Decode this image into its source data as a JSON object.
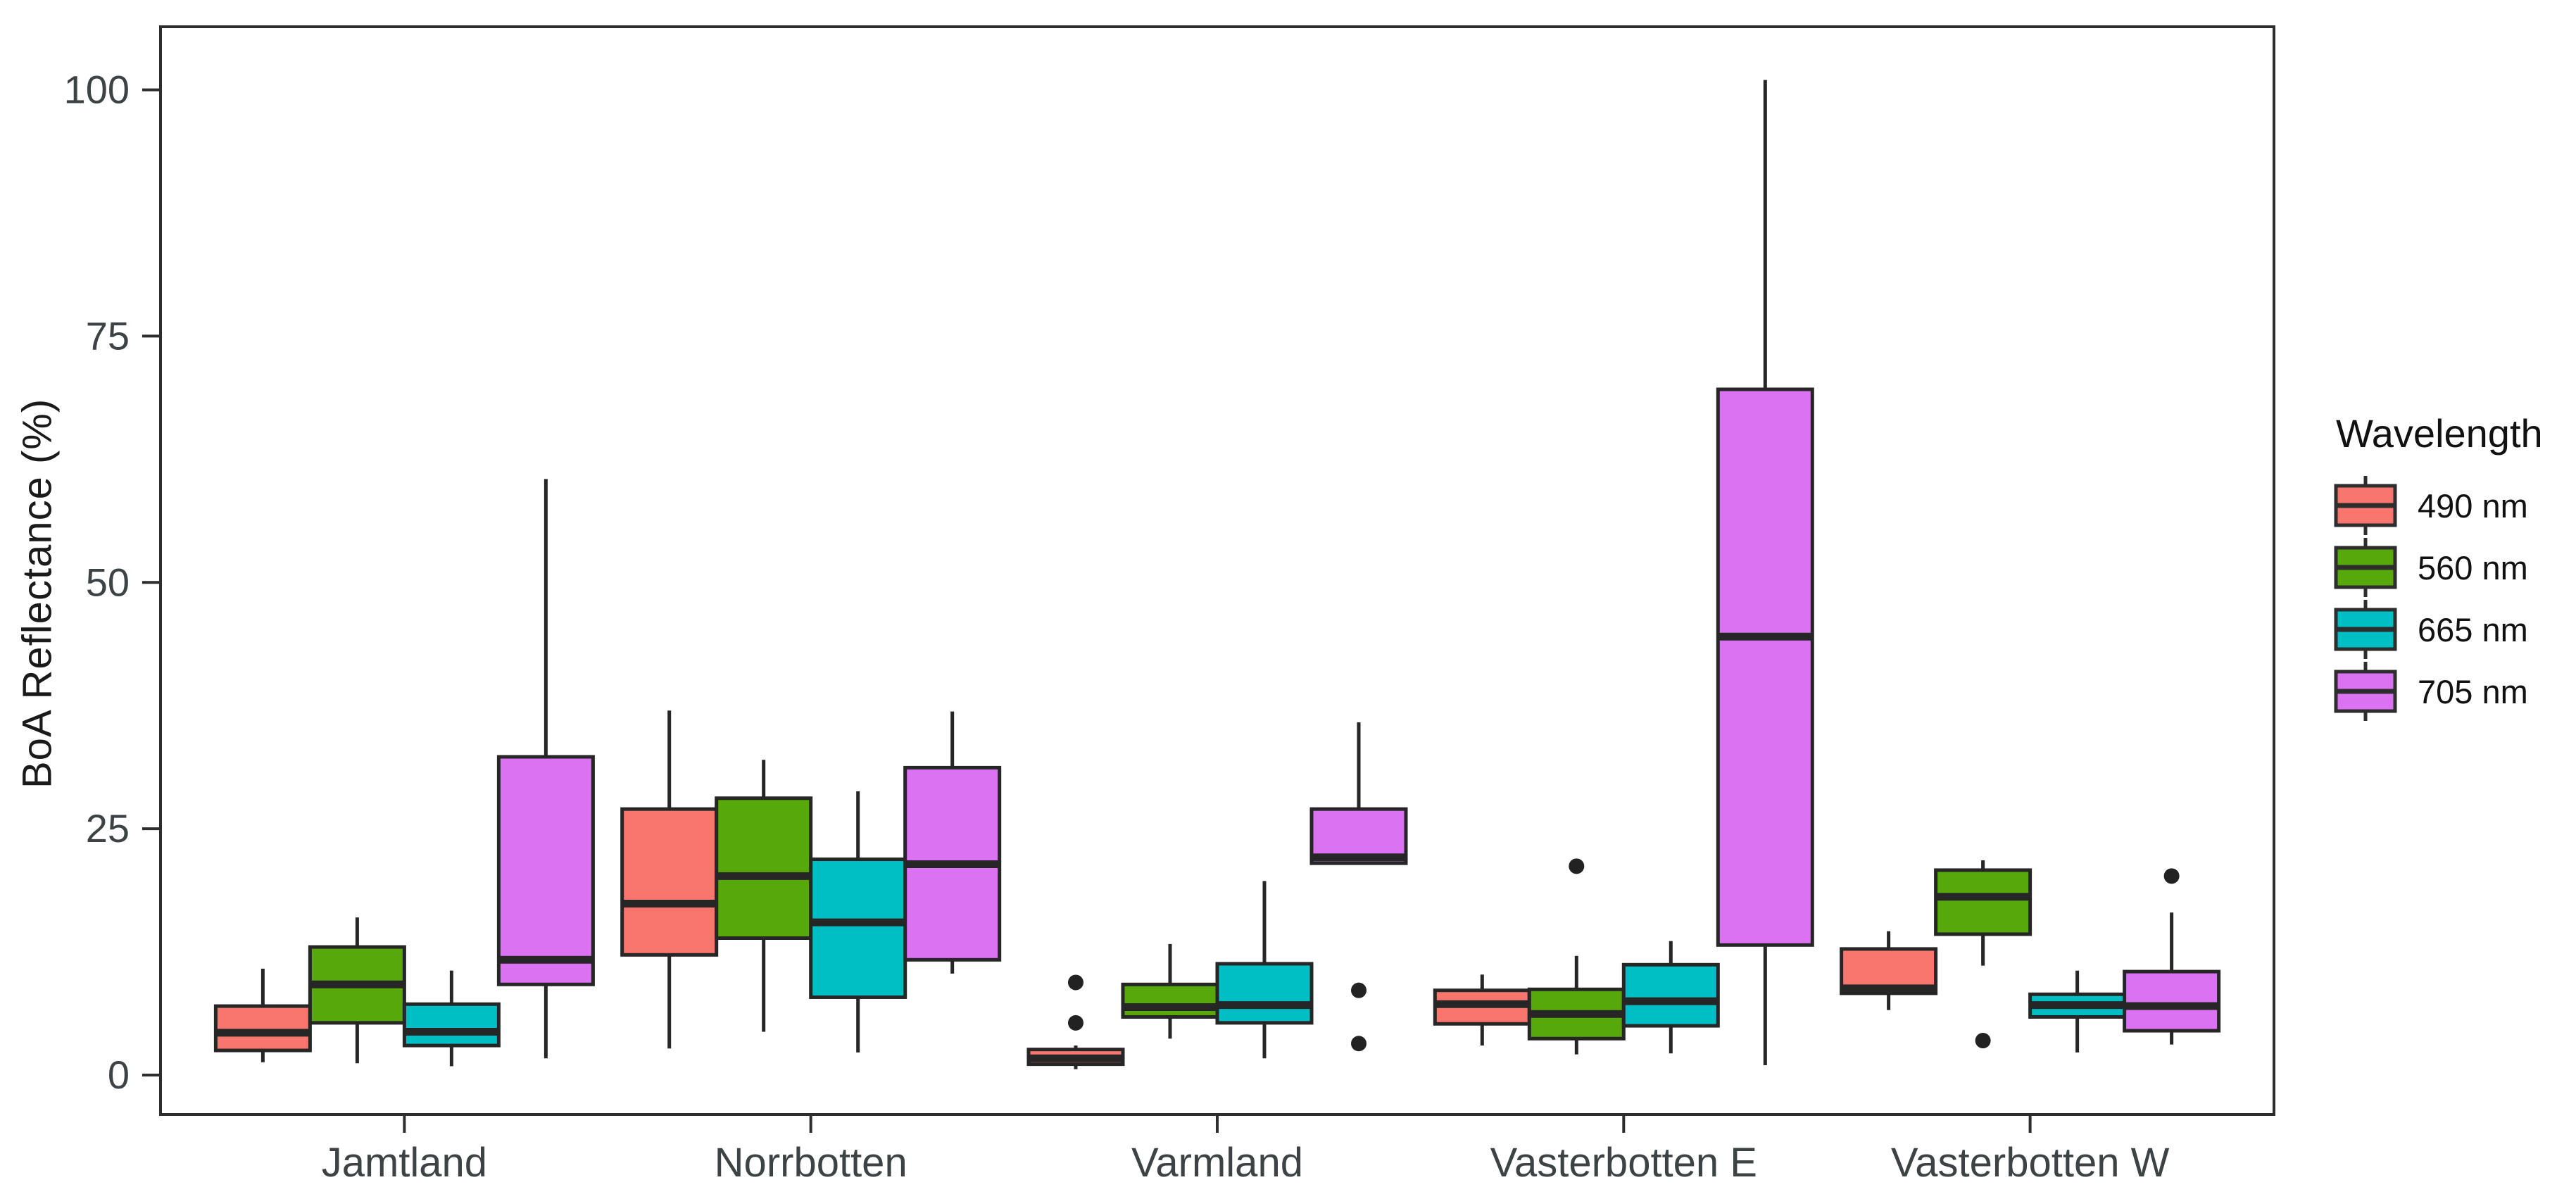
{
  "chart_data": {
    "type": "boxplot",
    "title": "",
    "xlabel": "",
    "ylabel": "BoA Reflectance (%)",
    "ylim": [
      -4,
      106.4
    ],
    "yticks": [
      0,
      25,
      50,
      75,
      100
    ],
    "grid": "off",
    "panel": {
      "background": "#ffffff",
      "border_color": "#2d2d2d"
    },
    "axis_text_color": "#3d4345",
    "box_outline_color": "#262626",
    "outlier_color": "#222222",
    "categories": [
      "Jamtland",
      "Norrbotten",
      "Varmland",
      "Vasterbotten E",
      "Vasterbotten W"
    ],
    "legend": {
      "title": "Wavelength",
      "position": "right"
    },
    "series": [
      {
        "name": "490 nm",
        "color": "#F8766D",
        "boxes": [
          {
            "whislo": 1.3,
            "q1": 2.5,
            "med": 4.3,
            "q3": 7.0,
            "whishi": 10.8,
            "outliers": []
          },
          {
            "whislo": 2.7,
            "q1": 12.2,
            "med": 17.4,
            "q3": 27.0,
            "whishi": 37.0,
            "outliers": []
          },
          {
            "whislo": 0.6,
            "q1": 1.1,
            "med": 1.7,
            "q3": 2.6,
            "whishi": 3.0,
            "outliers": [
              5.3,
              9.4
            ]
          },
          {
            "whislo": 3.0,
            "q1": 5.2,
            "med": 7.2,
            "q3": 8.6,
            "whishi": 10.2,
            "outliers": []
          },
          {
            "whislo": 6.6,
            "q1": 8.3,
            "med": 8.8,
            "q3": 12.8,
            "whishi": 14.6,
            "outliers": []
          }
        ]
      },
      {
        "name": "560 nm",
        "color": "#56A80B",
        "boxes": [
          {
            "whislo": 1.2,
            "q1": 5.3,
            "med": 9.2,
            "q3": 13.0,
            "whishi": 16.0,
            "outliers": []
          },
          {
            "whislo": 4.4,
            "q1": 13.9,
            "med": 20.2,
            "q3": 28.1,
            "whishi": 32.0,
            "outliers": []
          },
          {
            "whislo": 3.7,
            "q1": 5.9,
            "med": 6.9,
            "q3": 9.2,
            "whishi": 13.3,
            "outliers": []
          },
          {
            "whislo": 2.1,
            "q1": 3.7,
            "med": 6.2,
            "q3": 8.7,
            "whishi": 12.1,
            "outliers": [
              21.2
            ]
          },
          {
            "whislo": 11.1,
            "q1": 14.3,
            "med": 18.1,
            "q3": 20.8,
            "whishi": 21.8,
            "outliers": [
              3.5
            ]
          }
        ]
      },
      {
        "name": "665 nm",
        "color": "#00BFC4",
        "boxes": [
          {
            "whislo": 0.9,
            "q1": 3.0,
            "med": 4.4,
            "q3": 7.2,
            "whishi": 10.6,
            "outliers": []
          },
          {
            "whislo": 2.3,
            "q1": 7.9,
            "med": 15.5,
            "q3": 21.9,
            "whishi": 28.8,
            "outliers": []
          },
          {
            "whislo": 1.7,
            "q1": 5.3,
            "med": 7.1,
            "q3": 11.3,
            "whishi": 19.7,
            "outliers": []
          },
          {
            "whislo": 2.2,
            "q1": 5.0,
            "med": 7.5,
            "q3": 11.2,
            "whishi": 13.6,
            "outliers": []
          },
          {
            "whislo": 2.3,
            "q1": 5.9,
            "med": 7.1,
            "q3": 8.2,
            "whishi": 10.6,
            "outliers": []
          }
        ]
      },
      {
        "name": "705 nm",
        "color": "#DB72F2",
        "boxes": [
          {
            "whislo": 1.7,
            "q1": 9.2,
            "med": 11.7,
            "q3": 32.3,
            "whishi": 60.5,
            "outliers": []
          },
          {
            "whislo": 10.3,
            "q1": 11.7,
            "med": 21.4,
            "q3": 31.2,
            "whishi": 36.9,
            "outliers": []
          },
          {
            "whislo": 21.4,
            "q1": 21.5,
            "med": 22.1,
            "q3": 27.0,
            "whishi": 35.8,
            "outliers": [
              3.2,
              8.6
            ]
          },
          {
            "whislo": 1.0,
            "q1": 13.2,
            "med": 44.5,
            "q3": 69.6,
            "whishi": 101.0,
            "outliers": []
          },
          {
            "whislo": 3.1,
            "q1": 4.5,
            "med": 7.0,
            "q3": 10.5,
            "whishi": 16.5,
            "outliers": [
              20.2
            ]
          }
        ]
      }
    ]
  }
}
